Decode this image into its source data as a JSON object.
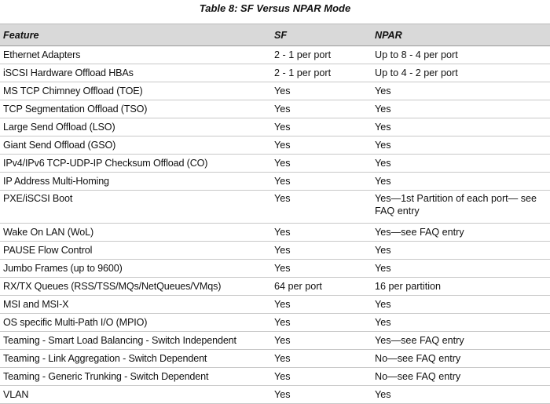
{
  "table": {
    "title": "Table 8:  SF Versus NPAR Mode",
    "headers": [
      "Feature",
      "SF",
      "NPAR"
    ],
    "rows": [
      [
        "Ethernet Adapters",
        "2 - 1 per port",
        "Up to 8 - 4 per port"
      ],
      [
        "iSCSI Hardware Offload HBAs",
        "2 - 1 per port",
        "Up to 4 - 2 per port"
      ],
      [
        "MS TCP Chimney Offload (TOE)",
        "Yes",
        "Yes"
      ],
      [
        "TCP Segmentation Offload (TSO)",
        "Yes",
        "Yes"
      ],
      [
        "Large Send Offload (LSO)",
        "Yes",
        "Yes"
      ],
      [
        "Giant Send Offload (GSO)",
        "Yes",
        "Yes"
      ],
      [
        "IPv4/IPv6 TCP-UDP-IP Checksum Offload (CO)",
        "Yes",
        "Yes"
      ],
      [
        "IP Address Multi-Homing",
        "Yes",
        "Yes"
      ],
      [
        "PXE/iSCSI Boot",
        "Yes",
        "Yes—1st Partition of each port— see FAQ entry"
      ],
      [
        "Wake On LAN (WoL)",
        "Yes",
        "Yes—see FAQ entry"
      ],
      [
        "PAUSE Flow Control",
        "Yes",
        "Yes"
      ],
      [
        "Jumbo Frames (up to 9600)",
        "Yes",
        "Yes"
      ],
      [
        "RX/TX Queues (RSS/TSS/MQs/NetQueues/VMqs)",
        "64 per port",
        "16 per partition"
      ],
      [
        "MSI and MSI-X",
        "Yes",
        "Yes"
      ],
      [
        "OS specific Multi-Path I/O (MPIO)",
        "Yes",
        "Yes"
      ],
      [
        "Teaming - Smart Load Balancing - Switch Independent",
        "Yes",
        "Yes—see FAQ entry"
      ],
      [
        "Teaming - Link Aggregation - Switch Dependent",
        "Yes",
        "No—see FAQ entry"
      ],
      [
        "Teaming - Generic Trunking - Switch Dependent",
        "Yes",
        "No—see FAQ entry"
      ],
      [
        "VLAN",
        "Yes",
        "Yes"
      ]
    ]
  }
}
